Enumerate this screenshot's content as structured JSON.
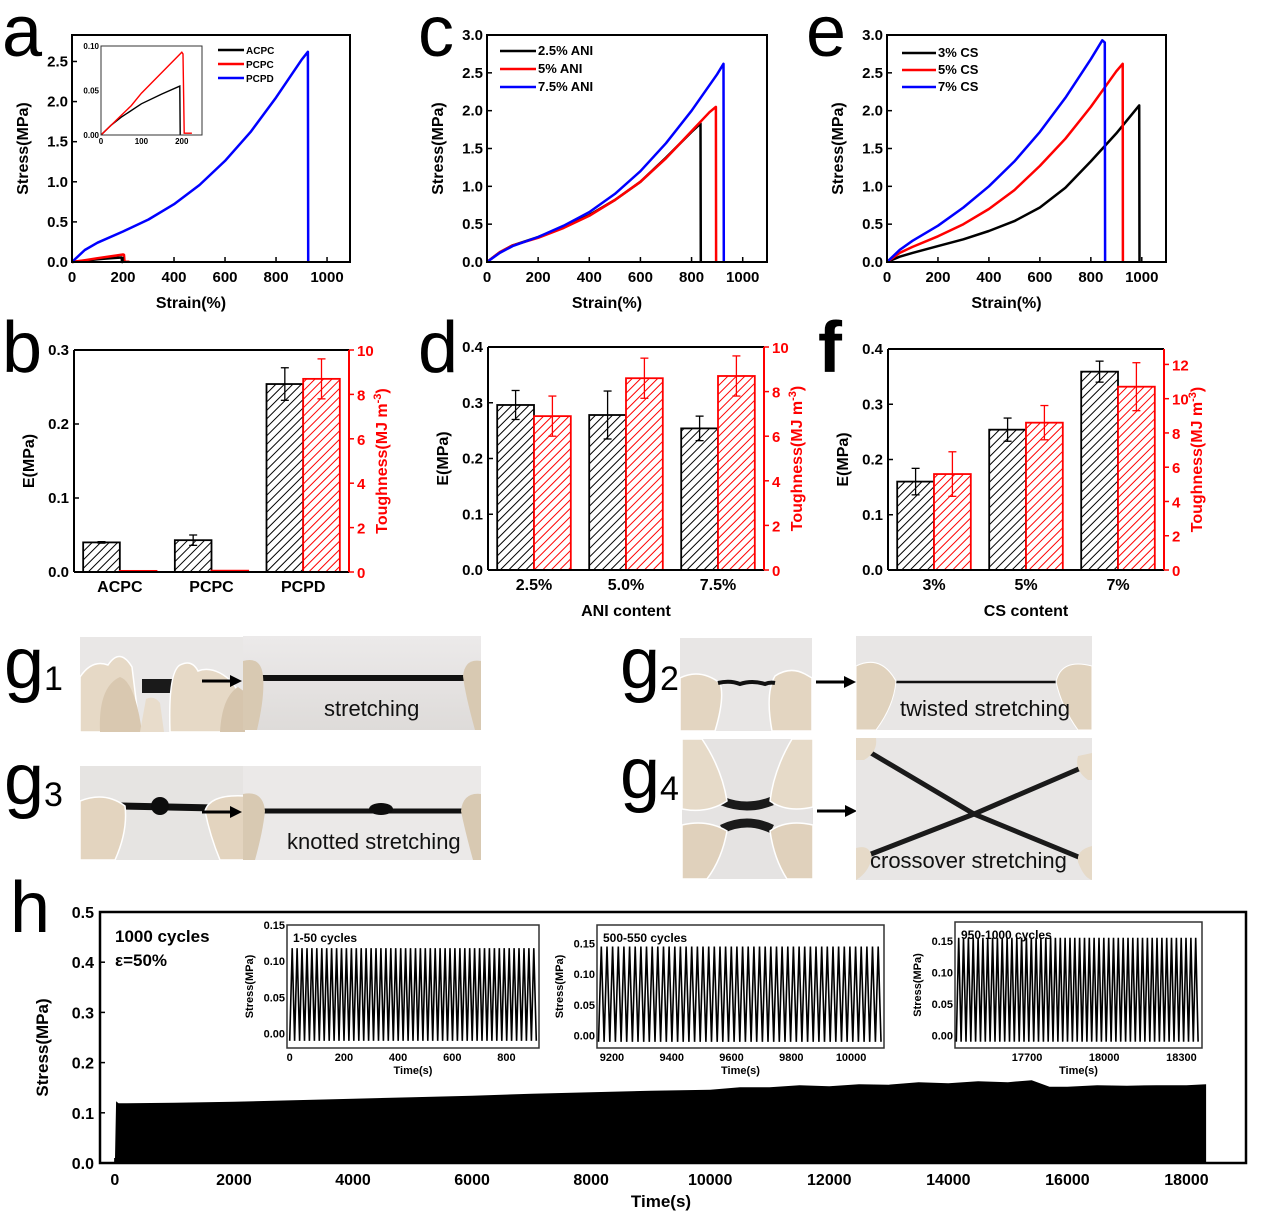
{
  "panel_letters": {
    "a": "a",
    "b": "b",
    "c": "c",
    "d": "d",
    "e": "e",
    "f": "f",
    "g": "g",
    "h": "h",
    "g_subs": [
      "1",
      "2",
      "3",
      "4"
    ]
  },
  "colors": {
    "black": "#000000",
    "red": "#ff0000",
    "blue": "#0000ff"
  },
  "chart_data": [
    {
      "id": "a",
      "type": "line",
      "title": "",
      "xlabel": "Strain(%)",
      "ylabel": "Stress(MPa)",
      "xlim": [
        0,
        1090
      ],
      "ylim": [
        0,
        2.83
      ],
      "xticks": [
        0,
        200,
        400,
        600,
        800,
        1000
      ],
      "yticks": [
        0.0,
        0.5,
        1.0,
        1.5,
        2.0,
        2.5
      ],
      "xtick_labels": [
        "0",
        "200",
        "400",
        "600",
        "800",
        "1000"
      ],
      "ytick_labels": [
        "0.0",
        "0.5",
        "1.0",
        "1.5",
        "2.0",
        "2.5"
      ],
      "legend_position": "top-right",
      "series": [
        {
          "name": "ACPC",
          "color": "#000000",
          "x": [
            0,
            50,
            100,
            150,
            195,
            196,
            200
          ],
          "y": [
            0,
            0.018,
            0.034,
            0.046,
            0.056,
            0,
            0
          ]
        },
        {
          "name": "PCPC",
          "color": "#ff0000",
          "x": [
            0,
            50,
            100,
            150,
            200,
            204,
            206,
            225
          ],
          "y": [
            0,
            0.022,
            0.047,
            0.07,
            0.093,
            0.09,
            0.002,
            0.002
          ]
        },
        {
          "name": "PCPD",
          "color": "#0000ff",
          "x": [
            0,
            50,
            100,
            200,
            300,
            400,
            500,
            600,
            700,
            800,
            900,
            925,
            926
          ],
          "y": [
            0,
            0.15,
            0.24,
            0.38,
            0.53,
            0.72,
            0.96,
            1.26,
            1.62,
            2.05,
            2.52,
            2.62,
            0
          ]
        }
      ],
      "inset": {
        "xlim": [
          0,
          250
        ],
        "ylim": [
          0,
          0.1
        ],
        "xticks": [
          0,
          100,
          200
        ],
        "yticks": [
          0.0,
          0.05,
          0.1
        ],
        "xtick_labels": [
          "0",
          "100",
          "200"
        ],
        "ytick_labels": [
          "0.00",
          "0.05",
          "0.10"
        ],
        "series": [
          {
            "name": "ACPC",
            "color": "#000000",
            "x": [
              0,
              25,
              50,
              100,
              150,
              195,
              196
            ],
            "y": [
              0,
              0.011,
              0.02,
              0.035,
              0.046,
              0.055,
              0
            ]
          },
          {
            "name": "PCPC",
            "color": "#ff0000",
            "x": [
              0,
              25,
              50,
              75,
              100,
              150,
              200,
              203,
              206,
              215,
              225
            ],
            "y": [
              0,
              0.011,
              0.022,
              0.033,
              0.047,
              0.07,
              0.093,
              0.091,
              0.002,
              0.002,
              0.002
            ]
          }
        ]
      }
    },
    {
      "id": "b",
      "type": "bar",
      "title": "",
      "xlabel": "",
      "ylabel": "E(MPa)",
      "ylabel_right": "Toughness(MJ m-3)",
      "ylabel_right_parts": [
        "Toughness(MJ m",
        "-3",
        ")"
      ],
      "categories": [
        "ACPC",
        "PCPC",
        "PCPD"
      ],
      "ylim": [
        0,
        0.3
      ],
      "ylim_right": [
        0,
        10
      ],
      "yticks": [
        0.0,
        0.1,
        0.2,
        0.3
      ],
      "ytick_labels": [
        "0.0",
        "0.1",
        "0.2",
        "0.3"
      ],
      "yticks_right": [
        0,
        2,
        4,
        6,
        8,
        10
      ],
      "ytick_labels_right": [
        "0",
        "2",
        "4",
        "6",
        "8",
        "10"
      ],
      "series": [
        {
          "name": "E",
          "axis": "left",
          "color": "#000000",
          "values": [
            0.04,
            0.043,
            0.254
          ],
          "errors": [
            0.001,
            0.007,
            0.022
          ]
        },
        {
          "name": "Toughness",
          "axis": "right",
          "color": "#ff0000",
          "values": [
            0.05,
            0.06,
            8.7
          ],
          "errors": [
            0,
            0,
            0.9
          ]
        }
      ]
    },
    {
      "id": "c",
      "type": "line",
      "title": "",
      "xlabel": "Strain(%)",
      "ylabel": "Stress(MPa)",
      "xlim": [
        0,
        1095
      ],
      "ylim": [
        0,
        3.0
      ],
      "xticks": [
        0,
        200,
        400,
        600,
        800,
        1000
      ],
      "yticks": [
        0.0,
        0.5,
        1.0,
        1.5,
        2.0,
        2.5,
        3.0
      ],
      "xtick_labels": [
        "0",
        "200",
        "400",
        "600",
        "800",
        "1000"
      ],
      "ytick_labels": [
        "0.0",
        "0.5",
        "1.0",
        "1.5",
        "2.0",
        "2.5",
        "3.0"
      ],
      "legend_position": "top-left",
      "series": [
        {
          "name": "2.5% ANI",
          "color": "#000000",
          "x": [
            0,
            50,
            100,
            200,
            300,
            400,
            500,
            600,
            700,
            800,
            835,
            836
          ],
          "y": [
            0,
            0.13,
            0.22,
            0.33,
            0.46,
            0.62,
            0.82,
            1.06,
            1.38,
            1.72,
            1.83,
            0
          ]
        },
        {
          "name": "5% ANI",
          "color": "#ff0000",
          "x": [
            0,
            50,
            100,
            200,
            300,
            400,
            500,
            600,
            700,
            800,
            870,
            895,
            896
          ],
          "y": [
            0,
            0.13,
            0.22,
            0.32,
            0.45,
            0.61,
            0.82,
            1.06,
            1.37,
            1.73,
            1.98,
            2.05,
            0
          ]
        },
        {
          "name": "7.5% ANI",
          "color": "#0000ff",
          "x": [
            0,
            50,
            100,
            200,
            300,
            400,
            500,
            600,
            700,
            800,
            900,
            925,
            926
          ],
          "y": [
            0,
            0.12,
            0.21,
            0.33,
            0.48,
            0.66,
            0.9,
            1.2,
            1.57,
            2.0,
            2.48,
            2.62,
            0
          ]
        }
      ]
    },
    {
      "id": "d",
      "type": "bar",
      "title": "",
      "xlabel": "ANI content",
      "ylabel": "E(MPa)",
      "ylabel_right": "Toughness(MJ m-3)",
      "ylabel_right_parts": [
        "Toughness(MJ m",
        "-3",
        ")"
      ],
      "categories": [
        "2.5%",
        "5.0%",
        "7.5%"
      ],
      "ylim": [
        0,
        0.4
      ],
      "ylim_right": [
        0,
        10
      ],
      "yticks": [
        0.0,
        0.1,
        0.2,
        0.3,
        0.4
      ],
      "ytick_labels": [
        "0.0",
        "0.1",
        "0.2",
        "0.3",
        "0.4"
      ],
      "yticks_right": [
        0,
        2,
        4,
        6,
        8,
        10
      ],
      "ytick_labels_right": [
        "0",
        "2",
        "4",
        "6",
        "8",
        "10"
      ],
      "series": [
        {
          "name": "E",
          "axis": "left",
          "color": "#000000",
          "values": [
            0.296,
            0.278,
            0.254
          ],
          "errors": [
            0.026,
            0.043,
            0.022
          ]
        },
        {
          "name": "Toughness",
          "axis": "right",
          "color": "#ff0000",
          "values": [
            6.9,
            8.6,
            8.7
          ],
          "errors": [
            0.9,
            0.9,
            0.9
          ]
        }
      ]
    },
    {
      "id": "e",
      "type": "line",
      "title": "",
      "xlabel": "Strain(%)",
      "ylabel": "Stress(MPa)",
      "xlim": [
        0,
        1095
      ],
      "ylim": [
        0,
        3.0
      ],
      "xticks": [
        0,
        200,
        400,
        600,
        800,
        1000
      ],
      "yticks": [
        0.0,
        0.5,
        1.0,
        1.5,
        2.0,
        2.5,
        3.0
      ],
      "xtick_labels": [
        "0",
        "200",
        "400",
        "600",
        "800",
        "1000"
      ],
      "ytick_labels": [
        "0.0",
        "0.5",
        "1.0",
        "1.5",
        "2.0",
        "2.5",
        "3.0"
      ],
      "legend_position": "top-left",
      "series": [
        {
          "name": "3% CS",
          "color": "#000000",
          "x": [
            0,
            50,
            100,
            200,
            300,
            400,
            500,
            600,
            700,
            800,
            900,
            990,
            991
          ],
          "y": [
            0,
            0.07,
            0.12,
            0.21,
            0.3,
            0.41,
            0.54,
            0.72,
            0.98,
            1.33,
            1.7,
            2.07,
            0
          ]
        },
        {
          "name": "5% CS",
          "color": "#ff0000",
          "x": [
            0,
            50,
            100,
            200,
            300,
            400,
            500,
            600,
            700,
            800,
            900,
            925,
            926
          ],
          "y": [
            0,
            0.12,
            0.2,
            0.34,
            0.5,
            0.7,
            0.95,
            1.27,
            1.63,
            2.05,
            2.52,
            2.62,
            0
          ]
        },
        {
          "name": "7% CS",
          "color": "#0000ff",
          "x": [
            0,
            50,
            100,
            200,
            300,
            400,
            500,
            600,
            700,
            800,
            845,
            855,
            856
          ],
          "y": [
            0,
            0.16,
            0.28,
            0.48,
            0.72,
            1.0,
            1.33,
            1.72,
            2.17,
            2.68,
            2.93,
            2.9,
            0
          ]
        }
      ]
    },
    {
      "id": "f",
      "type": "bar",
      "title": "",
      "xlabel": "CS content",
      "ylabel": "E(MPa)",
      "ylabel_right": "Toughness(MJ m-3)",
      "ylabel_right_parts": [
        "Toughness(MJ m",
        "-3",
        ")"
      ],
      "categories": [
        "3%",
        "5%",
        "7%"
      ],
      "ylim": [
        0,
        0.4
      ],
      "ylim_right": [
        0,
        12.9
      ],
      "yticks": [
        0.0,
        0.1,
        0.2,
        0.3,
        0.4
      ],
      "ytick_labels": [
        "0.0",
        "0.1",
        "0.2",
        "0.3",
        "0.4"
      ],
      "yticks_right": [
        0,
        2,
        4,
        6,
        8,
        10,
        12
      ],
      "ytick_labels_right": [
        "0",
        "2",
        "4",
        "6",
        "8",
        "10",
        "12"
      ],
      "series": [
        {
          "name": "E",
          "axis": "left",
          "color": "#000000",
          "values": [
            0.16,
            0.254,
            0.359
          ],
          "errors": [
            0.024,
            0.021,
            0.019
          ]
        },
        {
          "name": "Toughness",
          "axis": "right",
          "color": "#ff0000",
          "values": [
            5.6,
            8.6,
            10.7
          ],
          "errors": [
            1.3,
            1.0,
            1.4
          ]
        }
      ]
    },
    {
      "id": "h",
      "type": "area",
      "title": "",
      "xlabel": "Time(s)",
      "ylabel": "Stress(MPa)",
      "xlim": [
        -250,
        19000
      ],
      "ylim": [
        0,
        0.5
      ],
      "xticks": [
        0,
        2000,
        4000,
        6000,
        8000,
        10000,
        12000,
        14000,
        16000,
        18000
      ],
      "xtick_labels": [
        "0",
        "2000",
        "4000",
        "6000",
        "8000",
        "10000",
        "12000",
        "14000",
        "16000",
        "18000"
      ],
      "yticks": [
        0.0,
        0.1,
        0.2,
        0.3,
        0.4,
        0.5
      ],
      "ytick_labels": [
        "0.0",
        "0.1",
        "0.2",
        "0.3",
        "0.4",
        "0.5"
      ],
      "annotations": [
        "1000 cycles",
        "ε=50%"
      ],
      "envelope": {
        "x": [
          0,
          20,
          60,
          1000,
          2000,
          3000,
          4000,
          5000,
          6000,
          7000,
          8000,
          9000,
          10000,
          10500,
          11000,
          11500,
          12000,
          12500,
          13000,
          13500,
          14000,
          14500,
          15000,
          15400,
          15700,
          16000,
          16500,
          17000,
          17500,
          18000,
          18330
        ],
        "y": [
          0.0,
          0.123,
          0.119,
          0.12,
          0.122,
          0.125,
          0.128,
          0.131,
          0.134,
          0.138,
          0.141,
          0.144,
          0.146,
          0.151,
          0.151,
          0.155,
          0.153,
          0.157,
          0.156,
          0.161,
          0.159,
          0.163,
          0.161,
          0.165,
          0.152,
          0.152,
          0.155,
          0.154,
          0.155,
          0.155,
          0.157
        ]
      },
      "insets": [
        {
          "label": "1-50 cycles",
          "xlabel": "Time(s)",
          "ylabel": "Stress(MPa)",
          "xlim": [
            -10,
            920
          ],
          "ylim": [
            -0.02,
            0.15
          ],
          "xticks": [
            0,
            200,
            400,
            600,
            800
          ],
          "xtick_labels": [
            "0",
            "200",
            "400",
            "600",
            "800"
          ],
          "yticks": [
            0.0,
            0.05,
            0.1,
            0.15
          ],
          "ytick_labels": [
            "0.00",
            "0.05",
            "0.10",
            "0.15"
          ],
          "cycles": 50,
          "t_start": 0,
          "t_end": 910,
          "peak": 0.118,
          "min": -0.01
        },
        {
          "label": "500-550 cycles",
          "xlabel": "Time(s)",
          "ylabel": "Stress(MPa)",
          "xlim": [
            9150,
            10110
          ],
          "ylim": [
            -0.02,
            0.18
          ],
          "xticks": [
            9200,
            9400,
            9600,
            9800,
            10000
          ],
          "xtick_labels": [
            "9200",
            "9400",
            "9600",
            "9800",
            "10000"
          ],
          "yticks": [
            0.0,
            0.05,
            0.1,
            0.15
          ],
          "ytick_labels": [
            "0.00",
            "0.05",
            "0.10",
            "0.15"
          ],
          "cycles": 50,
          "t_start": 9155,
          "t_end": 10100,
          "peak": 0.145,
          "min": -0.01
        },
        {
          "label": "950-1000 cycles",
          "xlabel": "Time(s)",
          "ylabel": "Stress(MPa)",
          "xlim": [
            17420,
            18380
          ],
          "ylim": [
            -0.02,
            0.18
          ],
          "xticks": [
            17700,
            18000,
            18300
          ],
          "xtick_labels": [
            "17700",
            "18000",
            "18300"
          ],
          "yticks": [
            0.0,
            0.05,
            0.1,
            0.15
          ],
          "ytick_labels": [
            "0.00",
            "0.05",
            "0.10",
            "0.15"
          ],
          "cycles": 50,
          "t_start": 17425,
          "t_end": 18365,
          "peak": 0.155,
          "min": -0.01
        }
      ]
    }
  ],
  "photos": {
    "g1": {
      "caption": "stretching"
    },
    "g2": {
      "caption": "twisted stretching"
    },
    "g3": {
      "caption": "knotted stretching"
    },
    "g4": {
      "caption": "crossover stretching"
    }
  }
}
